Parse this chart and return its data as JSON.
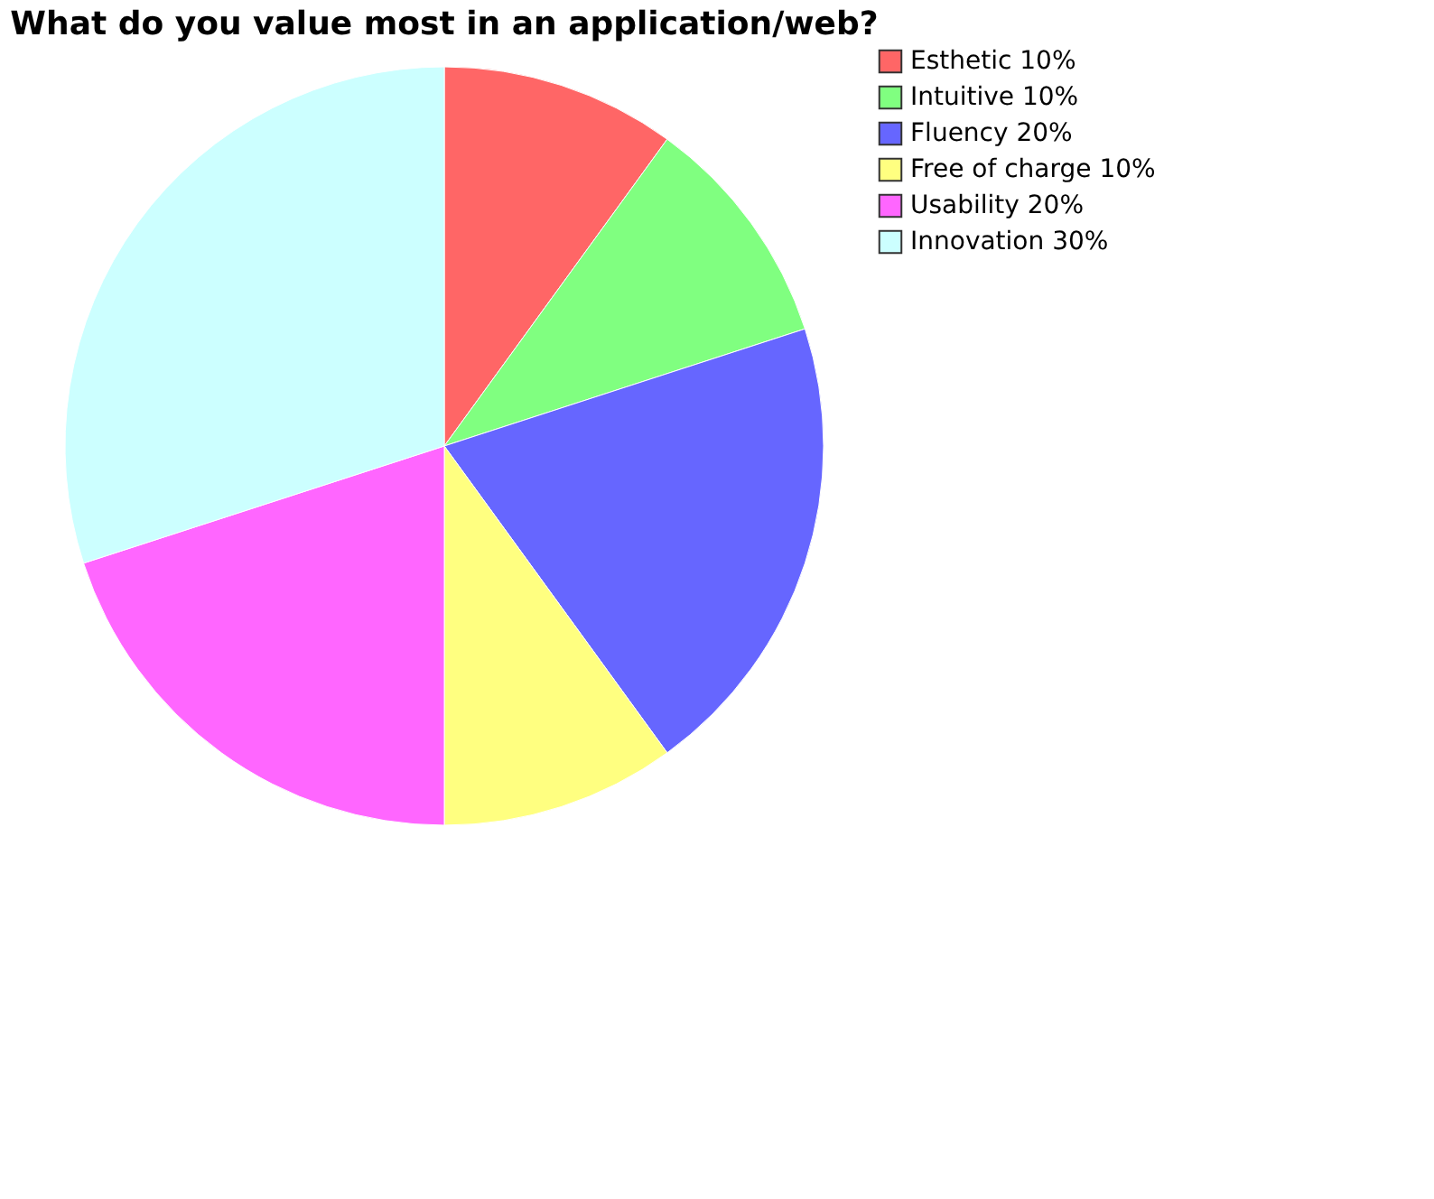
{
  "chart_data": {
    "type": "pie",
    "title": "What do you value most in an application/web?",
    "categories": [
      "Esthetic 10%",
      "Intuitive 10%",
      "Fluency 20%",
      "Free of charge 10%",
      "Usability 20%",
      "Innovation 30%"
    ],
    "values": [
      10,
      10,
      20,
      10,
      20,
      30
    ],
    "colors": [
      "#ff6666",
      "#80ff80",
      "#6666ff",
      "#ffff80",
      "#ff66ff",
      "#ccffff"
    ],
    "legend": "right"
  }
}
